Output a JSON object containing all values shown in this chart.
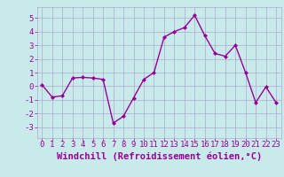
{
  "x": [
    0,
    1,
    2,
    3,
    4,
    5,
    6,
    7,
    8,
    9,
    10,
    11,
    12,
    13,
    14,
    15,
    16,
    17,
    18,
    19,
    20,
    21,
    22,
    23
  ],
  "y": [
    0.1,
    -0.8,
    -0.7,
    0.6,
    0.65,
    0.6,
    0.5,
    -2.7,
    -2.2,
    -0.85,
    0.5,
    1.0,
    3.6,
    4.0,
    4.3,
    5.2,
    3.7,
    2.4,
    2.2,
    3.0,
    1.0,
    -1.2,
    -0.05,
    -1.2
  ],
  "line_color": "#990099",
  "marker": "D",
  "marker_size": 2.0,
  "line_width": 1.0,
  "bg_color": "#c8eaea",
  "grid_color": "#aaaacc",
  "xlabel": "Windchill (Refroidissement éolien,°C)",
  "xlabel_color": "#990099",
  "xlabel_fontsize": 7.5,
  "tick_color": "#990099",
  "tick_fontsize": 6.5,
  "ylim": [
    -3.8,
    5.8
  ],
  "xlim": [
    -0.5,
    23.5
  ],
  "yticks": [
    -3,
    -2,
    -1,
    0,
    1,
    2,
    3,
    4,
    5
  ],
  "xticks": [
    0,
    1,
    2,
    3,
    4,
    5,
    6,
    7,
    8,
    9,
    10,
    11,
    12,
    13,
    14,
    15,
    16,
    17,
    18,
    19,
    20,
    21,
    22,
    23
  ]
}
